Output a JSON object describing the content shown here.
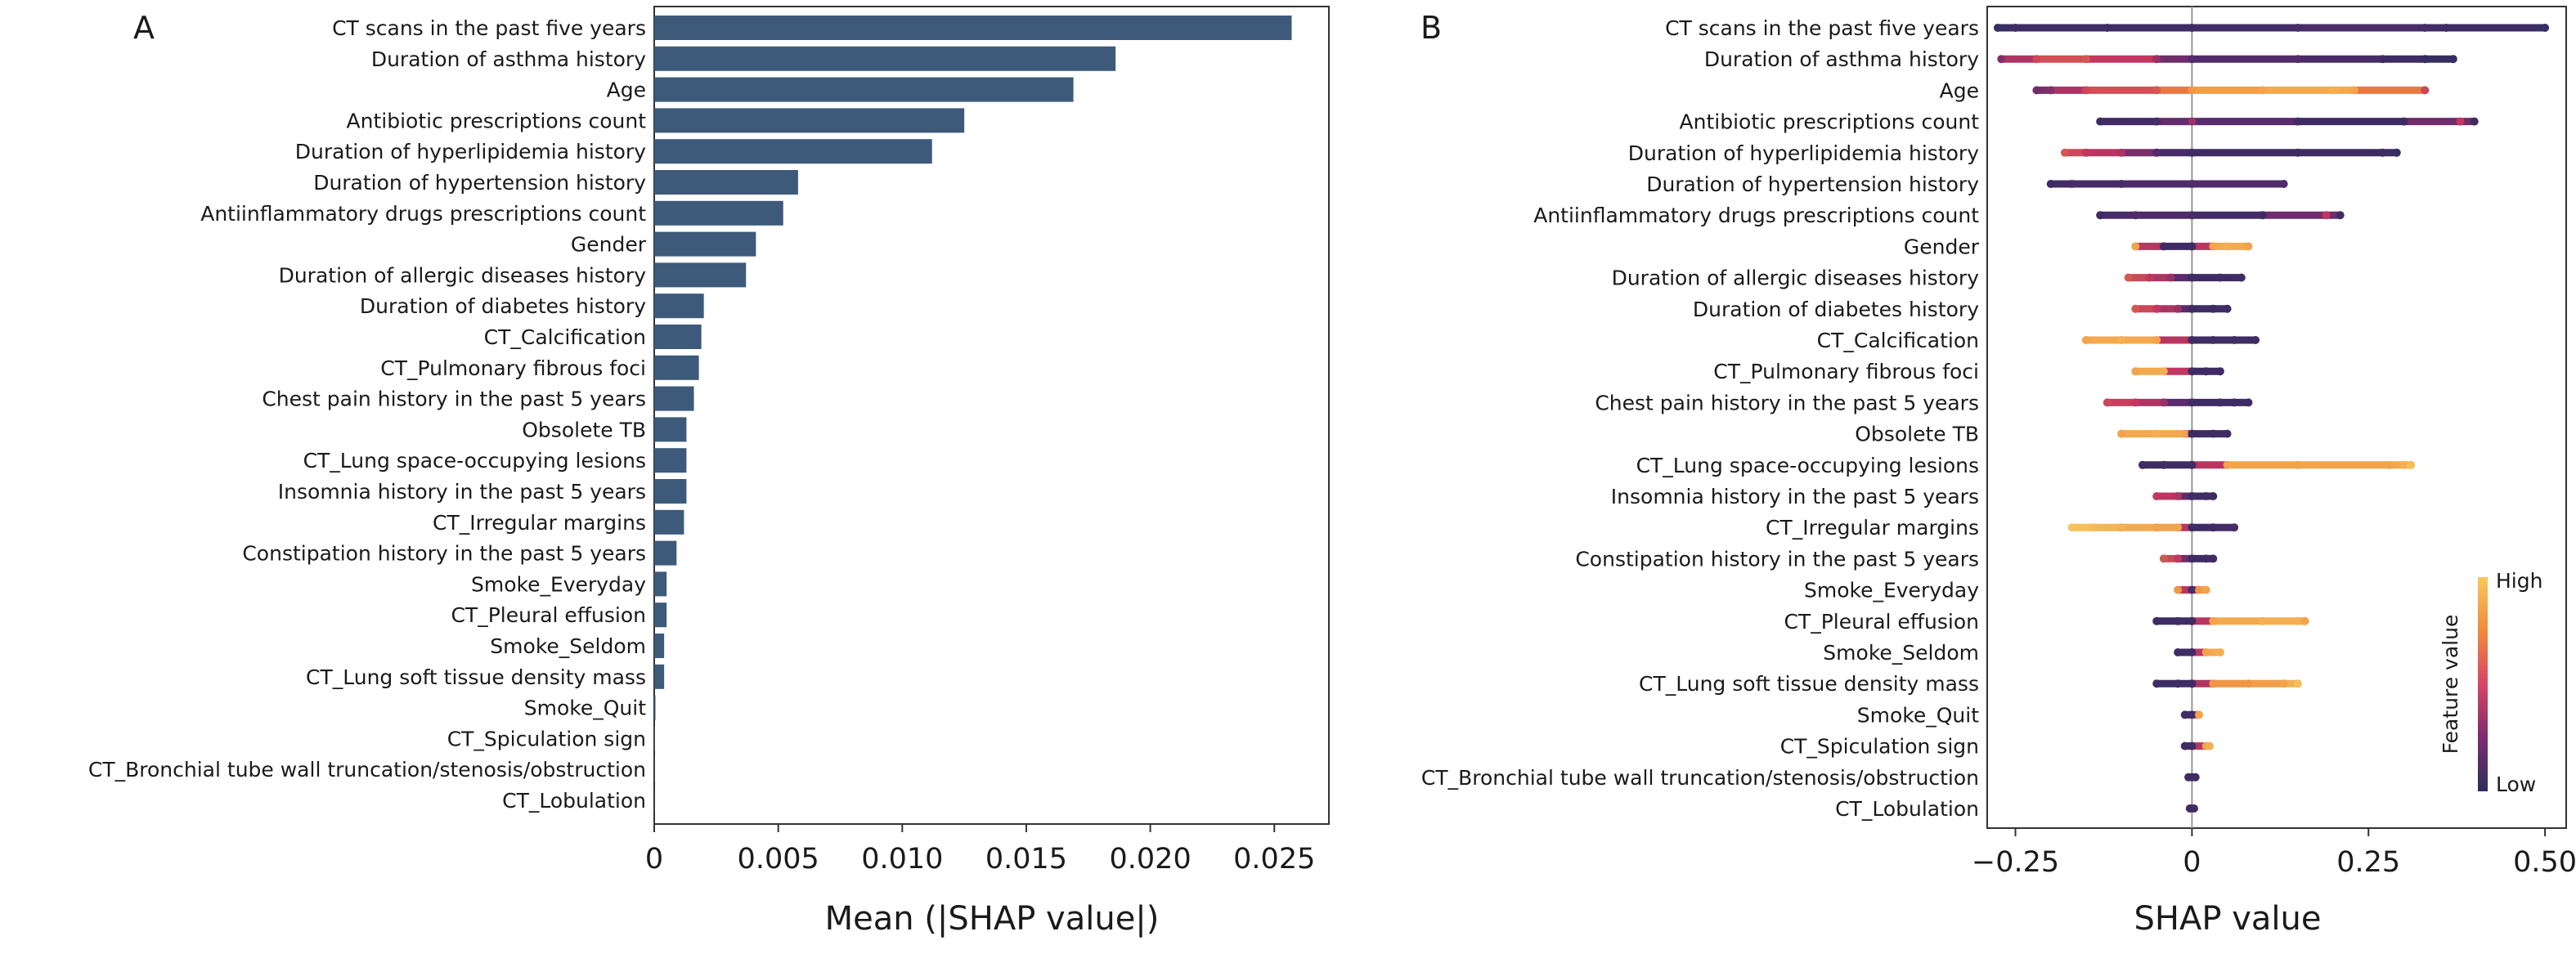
{
  "chart_data": [
    {
      "panel_label": "A",
      "type": "bar",
      "orientation": "horizontal",
      "title": "",
      "xlabel": "Mean (|SHAP value|)",
      "ylabel": "",
      "xlim": [
        0,
        0.0272
      ],
      "xticks": [
        0,
        0.005,
        0.01,
        0.015,
        0.02,
        0.025
      ],
      "xtick_labels": [
        "0",
        "0.005",
        "0.010",
        "0.015",
        "0.020",
        "0.025"
      ],
      "grid": false,
      "bar_color": "#3d5a7a",
      "categories": [
        "CT scans in the past five years",
        "Duration of asthma history",
        "Age",
        "Antibiotic prescriptions count",
        "Duration of hyperlipidemia history",
        "Duration of hypertension history",
        "Antiinflammatory drugs prescriptions count",
        "Gender",
        "Duration of allergic diseases history",
        "Duration of diabetes history",
        "CT_Calcification",
        "CT_Pulmonary fibrous foci",
        "Chest pain history in the past 5 years",
        "Obsolete TB",
        "CT_Lung space-occupying lesions",
        "Insomnia history in the past 5 years",
        "CT_Irregular margins",
        "Constipation history in the past 5 years",
        "Smoke_Everyday",
        "CT_Pleural effusion",
        "Smoke_Seldom",
        "CT_Lung soft tissue density mass",
        "Smoke_Quit",
        "CT_Spiculation sign",
        "CT_Bronchial tube wall truncation/stenosis/obstruction",
        "CT_Lobulation"
      ],
      "values": [
        0.0257,
        0.0186,
        0.0169,
        0.0125,
        0.0112,
        0.0058,
        0.0052,
        0.0041,
        0.0037,
        0.002,
        0.0019,
        0.0018,
        0.0016,
        0.0013,
        0.0013,
        0.0013,
        0.0012,
        0.0009,
        0.0005,
        0.0005,
        0.0004,
        0.0004,
        5e-05,
        3e-05,
        2e-05,
        1e-05
      ]
    },
    {
      "panel_label": "B",
      "type": "scatter",
      "subtype": "beeswarm",
      "title": "",
      "xlabel": "SHAP value",
      "ylabel": "",
      "xlim": [
        -0.29,
        0.53
      ],
      "xticks": [
        -0.25,
        0,
        0.25,
        0.5
      ],
      "xtick_labels": [
        "−0.25",
        "0",
        "0.25",
        "0.50"
      ],
      "grid": false,
      "legend": {
        "title": "Feature value",
        "high_label": "High",
        "low_label": "Low",
        "placement": "right",
        "colors": [
          "#f6c85f",
          "#f08a3e",
          "#d64565",
          "#9b2c6e",
          "#5a2b6e",
          "#2d2d5e"
        ]
      },
      "categories": [
        "CT scans in the past five years",
        "Duration of asthma history",
        "Age",
        "Antibiotic prescriptions count",
        "Duration of hyperlipidemia history",
        "Duration of hypertension history",
        "Antiinflammatory drugs prescriptions count",
        "Gender",
        "Duration of allergic diseases history",
        "Duration of diabetes history",
        "CT_Calcification",
        "CT_Pulmonary fibrous foci",
        "Chest pain history in the past 5 years",
        "Obsolete TB",
        "CT_Lung space-occupying lesions",
        "Insomnia history in the past 5 years",
        "CT_Irregular margins",
        "Constipation history in the past 5 years",
        "Smoke_Everyday",
        "CT_Pleural effusion",
        "Smoke_Seldom",
        "CT_Lung soft tissue density mass",
        "Smoke_Quit",
        "CT_Spiculation sign",
        "CT_Bronchial tube wall truncation/stenosis/obstruction",
        "CT_Lobulation"
      ],
      "points": [
        [
          {
            "x": -0.275,
            "v": 0.05
          },
          {
            "x": -0.25,
            "v": 0.1
          },
          {
            "x": -0.12,
            "v": 0.1
          },
          {
            "x": 0.0,
            "v": 0.1
          },
          {
            "x": 0.15,
            "v": 0.15
          },
          {
            "x": 0.33,
            "v": 0.15
          },
          {
            "x": 0.36,
            "v": 0.1
          },
          {
            "x": 0.5,
            "v": 0.05
          }
        ],
        [
          {
            "x": -0.27,
            "v": 0.35
          },
          {
            "x": -0.22,
            "v": 0.55
          },
          {
            "x": -0.15,
            "v": 0.6
          },
          {
            "x": -0.05,
            "v": 0.4
          },
          {
            "x": 0.0,
            "v": 0.2
          },
          {
            "x": 0.15,
            "v": 0.2
          },
          {
            "x": 0.27,
            "v": 0.1
          },
          {
            "x": 0.33,
            "v": 0.05
          },
          {
            "x": 0.37,
            "v": 0.05
          }
        ],
        [
          {
            "x": -0.22,
            "v": 0.3
          },
          {
            "x": -0.2,
            "v": 0.35
          },
          {
            "x": -0.15,
            "v": 0.55
          },
          {
            "x": -0.05,
            "v": 0.6
          },
          {
            "x": 0.0,
            "v": 0.8
          },
          {
            "x": 0.1,
            "v": 0.85
          },
          {
            "x": 0.2,
            "v": 0.9
          },
          {
            "x": 0.23,
            "v": 0.85
          },
          {
            "x": 0.33,
            "v": 0.55
          }
        ],
        [
          {
            "x": -0.13,
            "v": 0.1
          },
          {
            "x": -0.05,
            "v": 0.15
          },
          {
            "x": 0.0,
            "v": 0.4
          },
          {
            "x": 0.15,
            "v": 0.1
          },
          {
            "x": 0.3,
            "v": 0.1
          },
          {
            "x": 0.38,
            "v": 0.5
          },
          {
            "x": 0.4,
            "v": 0.1
          }
        ],
        [
          {
            "x": -0.18,
            "v": 0.6
          },
          {
            "x": -0.15,
            "v": 0.5
          },
          {
            "x": -0.1,
            "v": 0.45
          },
          {
            "x": -0.05,
            "v": 0.2
          },
          {
            "x": 0.0,
            "v": 0.1
          },
          {
            "x": 0.15,
            "v": 0.1
          },
          {
            "x": 0.27,
            "v": 0.1
          },
          {
            "x": 0.29,
            "v": 0.05
          }
        ],
        [
          {
            "x": -0.2,
            "v": 0.1
          },
          {
            "x": -0.17,
            "v": 0.15
          },
          {
            "x": -0.1,
            "v": 0.15
          },
          {
            "x": 0.0,
            "v": 0.2
          },
          {
            "x": 0.13,
            "v": 0.2
          }
        ],
        [
          {
            "x": -0.13,
            "v": 0.1
          },
          {
            "x": -0.08,
            "v": 0.2
          },
          {
            "x": 0.0,
            "v": 0.15
          },
          {
            "x": 0.1,
            "v": 0.1
          },
          {
            "x": 0.19,
            "v": 0.5
          },
          {
            "x": 0.21,
            "v": 0.1
          }
        ],
        [
          {
            "x": -0.08,
            "v": 0.85
          },
          {
            "x": -0.04,
            "v": 0.1
          },
          {
            "x": 0.0,
            "v": 0.1
          },
          {
            "x": 0.03,
            "v": 0.85
          },
          {
            "x": 0.05,
            "v": 0.9
          },
          {
            "x": 0.08,
            "v": 0.85
          }
        ],
        [
          {
            "x": -0.09,
            "v": 0.6
          },
          {
            "x": -0.06,
            "v": 0.5
          },
          {
            "x": -0.03,
            "v": 0.4
          },
          {
            "x": 0.0,
            "v": 0.1
          },
          {
            "x": 0.04,
            "v": 0.1
          },
          {
            "x": 0.07,
            "v": 0.1
          }
        ],
        [
          {
            "x": -0.08,
            "v": 0.6
          },
          {
            "x": -0.05,
            "v": 0.5
          },
          {
            "x": -0.02,
            "v": 0.4
          },
          {
            "x": 0.0,
            "v": 0.1
          },
          {
            "x": 0.03,
            "v": 0.1
          },
          {
            "x": 0.05,
            "v": 0.1
          }
        ],
        [
          {
            "x": -0.15,
            "v": 0.85
          },
          {
            "x": -0.1,
            "v": 0.9
          },
          {
            "x": -0.05,
            "v": 0.85
          },
          {
            "x": 0.0,
            "v": 0.1
          },
          {
            "x": 0.03,
            "v": 0.1
          },
          {
            "x": 0.06,
            "v": 0.1
          },
          {
            "x": 0.09,
            "v": 0.1
          }
        ],
        [
          {
            "x": -0.08,
            "v": 0.85
          },
          {
            "x": -0.04,
            "v": 0.9
          },
          {
            "x": 0.0,
            "v": 0.1
          },
          {
            "x": 0.02,
            "v": 0.1
          },
          {
            "x": 0.04,
            "v": 0.1
          }
        ],
        [
          {
            "x": -0.12,
            "v": 0.55
          },
          {
            "x": -0.08,
            "v": 0.5
          },
          {
            "x": -0.04,
            "v": 0.4
          },
          {
            "x": 0.0,
            "v": 0.1
          },
          {
            "x": 0.04,
            "v": 0.1
          },
          {
            "x": 0.06,
            "v": 0.1
          },
          {
            "x": 0.08,
            "v": 0.1
          }
        ],
        [
          {
            "x": -0.1,
            "v": 0.85
          },
          {
            "x": -0.05,
            "v": 0.9
          },
          {
            "x": -0.01,
            "v": 0.85
          },
          {
            "x": 0.0,
            "v": 0.1
          },
          {
            "x": 0.03,
            "v": 0.1
          },
          {
            "x": 0.05,
            "v": 0.1
          }
        ],
        [
          {
            "x": -0.07,
            "v": 0.1
          },
          {
            "x": -0.04,
            "v": 0.1
          },
          {
            "x": 0.0,
            "v": 0.1
          },
          {
            "x": 0.05,
            "v": 0.85
          },
          {
            "x": 0.15,
            "v": 0.85
          },
          {
            "x": 0.28,
            "v": 0.85
          },
          {
            "x": 0.3,
            "v": 0.9
          },
          {
            "x": 0.31,
            "v": 0.95
          }
        ],
        [
          {
            "x": -0.05,
            "v": 0.5
          },
          {
            "x": -0.02,
            "v": 0.45
          },
          {
            "x": 0.0,
            "v": 0.1
          },
          {
            "x": 0.02,
            "v": 0.1
          },
          {
            "x": 0.03,
            "v": 0.1
          }
        ],
        [
          {
            "x": -0.17,
            "v": 0.98
          },
          {
            "x": -0.14,
            "v": 0.95
          },
          {
            "x": -0.1,
            "v": 0.9
          },
          {
            "x": -0.05,
            "v": 0.85
          },
          {
            "x": -0.02,
            "v": 0.85
          },
          {
            "x": 0.0,
            "v": 0.1
          },
          {
            "x": 0.03,
            "v": 0.1
          },
          {
            "x": 0.06,
            "v": 0.15
          }
        ],
        [
          {
            "x": -0.04,
            "v": 0.6
          },
          {
            "x": -0.02,
            "v": 0.5
          },
          {
            "x": 0.0,
            "v": 0.1
          },
          {
            "x": 0.02,
            "v": 0.1
          },
          {
            "x": 0.03,
            "v": 0.1
          }
        ],
        [
          {
            "x": -0.02,
            "v": 0.8
          },
          {
            "x": 0.0,
            "v": 0.15
          },
          {
            "x": 0.01,
            "v": 0.8
          },
          {
            "x": 0.02,
            "v": 0.85
          }
        ],
        [
          {
            "x": -0.05,
            "v": 0.1
          },
          {
            "x": -0.02,
            "v": 0.1
          },
          {
            "x": 0.0,
            "v": 0.1
          },
          {
            "x": 0.03,
            "v": 0.85
          },
          {
            "x": 0.1,
            "v": 0.9
          },
          {
            "x": 0.15,
            "v": 0.9
          },
          {
            "x": 0.16,
            "v": 0.85
          }
        ],
        [
          {
            "x": -0.02,
            "v": 0.1
          },
          {
            "x": 0.0,
            "v": 0.1
          },
          {
            "x": 0.02,
            "v": 0.85
          },
          {
            "x": 0.04,
            "v": 0.9
          }
        ],
        [
          {
            "x": -0.05,
            "v": 0.1
          },
          {
            "x": -0.02,
            "v": 0.1
          },
          {
            "x": 0.0,
            "v": 0.1
          },
          {
            "x": 0.03,
            "v": 0.8
          },
          {
            "x": 0.08,
            "v": 0.8
          },
          {
            "x": 0.13,
            "v": 0.85
          },
          {
            "x": 0.15,
            "v": 0.95
          }
        ],
        [
          {
            "x": -0.01,
            "v": 0.1
          },
          {
            "x": 0.0,
            "v": 0.1
          },
          {
            "x": 0.01,
            "v": 0.85
          }
        ],
        [
          {
            "x": -0.01,
            "v": 0.1
          },
          {
            "x": 0.0,
            "v": 0.1
          },
          {
            "x": 0.02,
            "v": 0.85
          },
          {
            "x": 0.025,
            "v": 0.9
          }
        ],
        [
          {
            "x": -0.005,
            "v": 0.1
          },
          {
            "x": 0.0,
            "v": 0.1
          },
          {
            "x": 0.005,
            "v": 0.1
          }
        ],
        [
          {
            "x": -0.003,
            "v": 0.1
          },
          {
            "x": 0.0,
            "v": 0.1
          },
          {
            "x": 0.003,
            "v": 0.1
          }
        ]
      ]
    }
  ]
}
